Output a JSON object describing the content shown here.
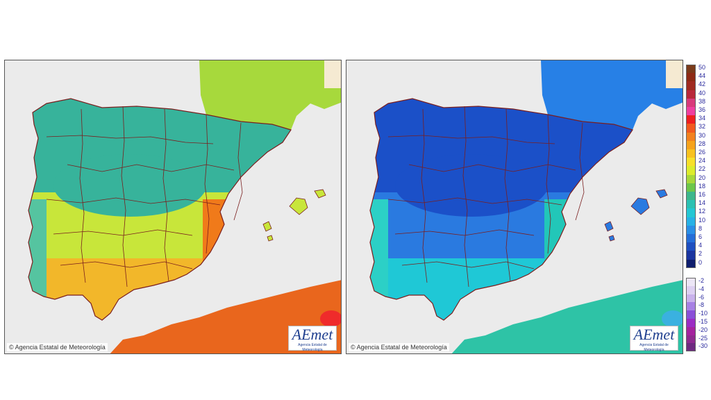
{
  "maps": [
    {
      "id": "left",
      "credit": "© Agencia Estatal de Meteorología",
      "logo": {
        "main": "AEmet",
        "sub": "Agencia Estatal de Meteorología"
      },
      "colors": {
        "north": "#37b39b",
        "central": "#c8e63a",
        "south": "#f2b72a",
        "hot": "#f07a1a",
        "africa": "#e9661d",
        "hotspot": "#ef2b2b",
        "france": "#a7d93c",
        "coast": "#55c4a0"
      }
    },
    {
      "id": "right",
      "credit": "© Agencia Estatal de Meteorología",
      "logo": {
        "main": "AEmet",
        "sub": "Agencia Estatal de Meteorología"
      },
      "colors": {
        "north": "#1b50c8",
        "central": "#2a7ae0",
        "south": "#1fc8d6",
        "hot": "#22c7b8",
        "africa": "#2ec3a6",
        "hotspot": "#3ab1e0",
        "france": "#2780e6",
        "coast": "#2cd0c6"
      }
    }
  ],
  "legend": {
    "upper": [
      {
        "label": "50",
        "color": "#7a3a1a"
      },
      {
        "label": "44",
        "color": "#8e2a14"
      },
      {
        "label": "42",
        "color": "#a02b1f"
      },
      {
        "label": "40",
        "color": "#b8283b"
      },
      {
        "label": "38",
        "color": "#d83a7a"
      },
      {
        "label": "36",
        "color": "#ef3f9f"
      },
      {
        "label": "34",
        "color": "#ee1f1f"
      },
      {
        "label": "32",
        "color": "#f25a1e"
      },
      {
        "label": "30",
        "color": "#f3821e"
      },
      {
        "label": "28",
        "color": "#f6a31c"
      },
      {
        "label": "26",
        "color": "#f8c21f"
      },
      {
        "label": "24",
        "color": "#f7e02a"
      },
      {
        "label": "22",
        "color": "#dcec2c"
      },
      {
        "label": "20",
        "color": "#a8d83a"
      },
      {
        "label": "18",
        "color": "#6dc74a"
      },
      {
        "label": "16",
        "color": "#3db78c"
      },
      {
        "label": "14",
        "color": "#2bc1b3"
      },
      {
        "label": "12",
        "color": "#24c7d4"
      },
      {
        "label": "10",
        "color": "#27b2e6"
      },
      {
        "label": "8",
        "color": "#2a8fe6"
      },
      {
        "label": "6",
        "color": "#246ed8"
      },
      {
        "label": "4",
        "color": "#1e4fc0"
      },
      {
        "label": "2",
        "color": "#1a35a0"
      },
      {
        "label": "0",
        "color": "#101f6f"
      }
    ],
    "lower": [
      {
        "label": "-2",
        "color": "#ece6f6"
      },
      {
        "label": "-4",
        "color": "#ddd0f2"
      },
      {
        "label": "-6",
        "color": "#c9b2ec"
      },
      {
        "label": "-8",
        "color": "#a781e4"
      },
      {
        "label": "-10",
        "color": "#8a4fd8"
      },
      {
        "label": "-15",
        "color": "#9b2cc4"
      },
      {
        "label": "-20",
        "color": "#a5239f"
      },
      {
        "label": "-25",
        "color": "#8f2a8f"
      },
      {
        "label": "-30",
        "color": "#6e2a80"
      }
    ]
  }
}
